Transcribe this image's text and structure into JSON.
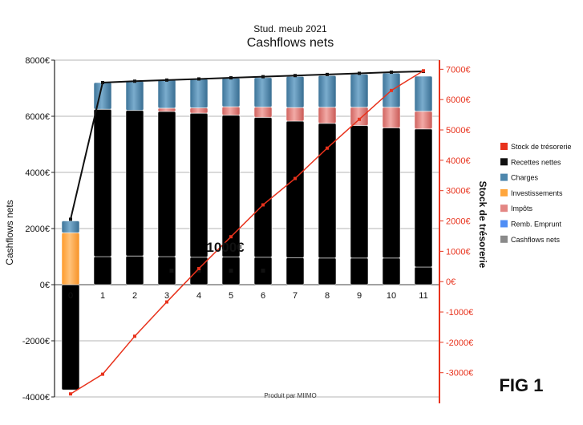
{
  "chart_data": {
    "type": "bar",
    "subtitle": "Stud. meub 2021",
    "title": "Cashflows nets",
    "ylabel": "Cashflows nets",
    "y2label": "Stock de trésorerie",
    "ylim": [
      -4000,
      8000
    ],
    "y2lim": [
      -3800,
      7300
    ],
    "yticks": [
      "8000€",
      "6000€",
      "4000€",
      "2000€",
      "0€",
      "-2000€",
      "-4000€"
    ],
    "y2ticks": [
      "7000€",
      "6000€",
      "5000€",
      "4000€",
      "3000€",
      "2000€",
      "1000€",
      "0€",
      "-1000€",
      "-2000€",
      "-3000€"
    ],
    "categories": [
      "0",
      "1",
      "2",
      "3",
      "4",
      "5",
      "6",
      "7",
      "8",
      "9",
      "10",
      "11"
    ],
    "legend_position": "right",
    "grid": true,
    "stacks": [
      {
        "name": "Cashflows nets",
        "color": "#8a8a8a",
        "values": [
          -3750,
          1000,
          1020,
          1000,
          980,
          990,
          980,
          960,
          950,
          950,
          950,
          630
        ]
      },
      {
        "name": "Remb. Emprunt",
        "color": "#4f8ef5",
        "values": [
          0,
          5250,
          5190,
          5170,
          5130,
          5050,
          4980,
          4870,
          4800,
          4720,
          4640,
          4920
        ]
      },
      {
        "name": "Impôts",
        "color": "#e38683",
        "values": [
          0,
          0,
          0,
          120,
          190,
          300,
          370,
          480,
          570,
          650,
          730,
          630
        ]
      },
      {
        "name": "Investissements",
        "color": "#ffa63d",
        "values": [
          1850,
          0,
          0,
          0,
          0,
          0,
          0,
          0,
          0,
          0,
          0,
          0
        ]
      },
      {
        "name": "Charges",
        "color": "#4e87ad",
        "values": [
          420,
          950,
          1040,
          1010,
          1030,
          1020,
          1050,
          1110,
          1130,
          1180,
          1220,
          1250
        ]
      }
    ],
    "series": [
      {
        "name": "Recettes nettes",
        "color": "#111111",
        "axis": "left",
        "values": [
          2330,
          7200,
          7250,
          7290,
          7330,
          7370,
          7410,
          7450,
          7490,
          7530,
          7570,
          7600
        ]
      },
      {
        "name": "Stock de trésorerie",
        "color": "#e8321c",
        "axis": "right",
        "values": [
          -3700,
          -3050,
          -1800,
          -670,
          430,
          1480,
          2530,
          3400,
          4400,
          5350,
          6300,
          6950
        ]
      }
    ],
    "markers": {
      "values": [
        500,
        500,
        500,
        500
      ],
      "x": [
        "3",
        "4",
        "5",
        "6"
      ]
    },
    "legend_order": [
      "Stock de trésorerie",
      "Recettes nettes",
      "Charges",
      "Investissements",
      "Impôts",
      "Remb. Emprunt",
      "Cashflows nets"
    ],
    "annotation": "1000€",
    "footer": "Produit par MIIMO",
    "fig_label": "FIG 1"
  }
}
